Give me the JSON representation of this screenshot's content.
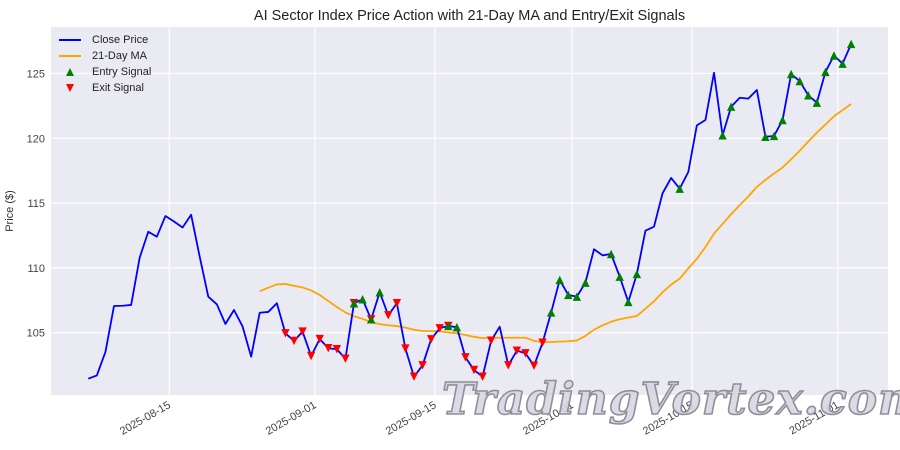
{
  "chart_data": {
    "type": "line",
    "title": "AI Sector Index Price Action with 21-Day MA and Entry/Exit Signals",
    "xlabel": "",
    "ylabel": "Price ($)",
    "ylim": [
      100.19,
      128.59
    ],
    "xlim_index": [
      -4.35,
      93.3
    ],
    "grid": true,
    "legend_position": "upper left",
    "yticks": [
      105,
      110,
      115,
      120,
      125
    ],
    "xticks": [
      {
        "label": "2025-08-15",
        "index": 9.45
      },
      {
        "label": "2025-09-01",
        "index": 26.45
      },
      {
        "label": "2025-09-15",
        "index": 40.45
      },
      {
        "label": "2025-10-01",
        "index": 56.45
      },
      {
        "label": "2025-10-15",
        "index": 70.45
      },
      {
        "label": "2025-11-01",
        "index": 87.45
      }
    ],
    "series": [
      {
        "name": "Close Price",
        "color": "#0000ff",
        "start_index": 0,
        "values": [
          101.45,
          101.7,
          103.51,
          107.06,
          107.08,
          107.14,
          110.8,
          112.79,
          112.41,
          114.0,
          113.58,
          113.12,
          114.1,
          110.86,
          107.78,
          107.19,
          105.67,
          106.75,
          105.48,
          103.15,
          106.54,
          106.6,
          107.27,
          104.95,
          104.36,
          105.08,
          103.2,
          104.51,
          103.8,
          103.72,
          102.99,
          107.27,
          107.58,
          106.03,
          108.12,
          106.34,
          107.27,
          103.77,
          101.6,
          102.48,
          104.49,
          105.34,
          105.52,
          105.42,
          103.1,
          102.12,
          101.6,
          104.38,
          105.46,
          102.48,
          103.61,
          103.41,
          102.45,
          104.23,
          106.56,
          109.07,
          107.91,
          107.78,
          108.86,
          111.44,
          110.97,
          111.07,
          109.32,
          107.37,
          109.53,
          112.87,
          113.18,
          115.76,
          116.94,
          116.11,
          117.4,
          121.0,
          121.41,
          125.06,
          120.23,
          122.44,
          123.13,
          123.06,
          123.73,
          120.12,
          120.18,
          121.41,
          124.96,
          124.42,
          123.32,
          122.75,
          125.12,
          126.39,
          125.76,
          127.28
        ]
      },
      {
        "name": "21-Day MA",
        "color": "#ffa500",
        "start_index": 20,
        "values": [
          108.2,
          108.47,
          108.73,
          108.76,
          108.62,
          108.49,
          108.26,
          107.91,
          107.45,
          106.98,
          106.56,
          106.27,
          106.07,
          105.8,
          105.66,
          105.57,
          105.51,
          105.39,
          105.23,
          105.13,
          105.13,
          105.1,
          105.02,
          104.95,
          104.82,
          104.68,
          104.58,
          104.61,
          104.61,
          104.61,
          104.61,
          104.61,
          104.37,
          104.26,
          104.28,
          104.31,
          104.34,
          104.4,
          104.75,
          105.23,
          105.57,
          105.84,
          106.04,
          106.17,
          106.29,
          106.85,
          107.42,
          108.12,
          108.71,
          109.17,
          109.96,
          110.7,
          111.61,
          112.65,
          113.39,
          114.15,
          114.84,
          115.51,
          116.26,
          116.79,
          117.28,
          117.75,
          118.38,
          119.04,
          119.75,
          120.44,
          121.06,
          121.7,
          122.18,
          122.65
        ]
      }
    ],
    "signals": {
      "entry": {
        "name": "Entry Signal",
        "color": "#008000",
        "marker": "triangle-up",
        "indices": [
          31,
          32,
          33,
          34,
          42,
          43,
          54,
          55,
          56,
          57,
          58,
          61,
          62,
          63,
          64,
          69,
          74,
          75,
          79,
          80,
          81,
          82,
          83,
          84,
          85,
          86,
          87,
          88,
          89
        ]
      },
      "exit": {
        "name": "Exit Signal",
        "color": "#ff0000",
        "marker": "triangle-down",
        "indices": [
          23,
          24,
          25,
          26,
          27,
          28,
          29,
          30,
          31,
          33,
          35,
          36,
          37,
          38,
          39,
          40,
          41,
          42,
          44,
          45,
          46,
          47,
          49,
          50,
          51,
          52,
          53
        ]
      }
    }
  },
  "legend": {
    "close": "Close Price",
    "ma": "21-Day MA",
    "entry": "Entry Signal",
    "exit": "Exit Signal"
  },
  "colors": {
    "plot_bg": "#eaeaf2",
    "grid": "#ffffff",
    "close": "#0000ff",
    "ma": "#ffa500",
    "entry": "#008000",
    "exit": "#ff0000"
  },
  "watermark": "TradingVortex.com"
}
